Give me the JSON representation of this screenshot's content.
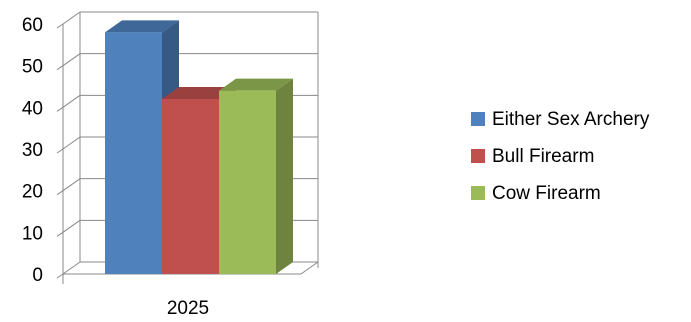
{
  "chart_data": {
    "type": "bar",
    "style": "3d-clustered-column",
    "categories": [
      "2025"
    ],
    "series": [
      {
        "name": "Either Sex Archery",
        "values": [
          58
        ],
        "color": "#4F81BD"
      },
      {
        "name": "Bull Firearm",
        "values": [
          42
        ],
        "color": "#C0504D"
      },
      {
        "name": "Cow Firearm",
        "values": [
          44
        ],
        "color": "#9BBB59"
      }
    ],
    "ylim": [
      0,
      60
    ],
    "yticks": [
      "0",
      "10",
      "20",
      "30",
      "40",
      "50",
      "60"
    ],
    "title": "",
    "xlabel": "",
    "ylabel": "",
    "grid": true,
    "legend": "right"
  }
}
